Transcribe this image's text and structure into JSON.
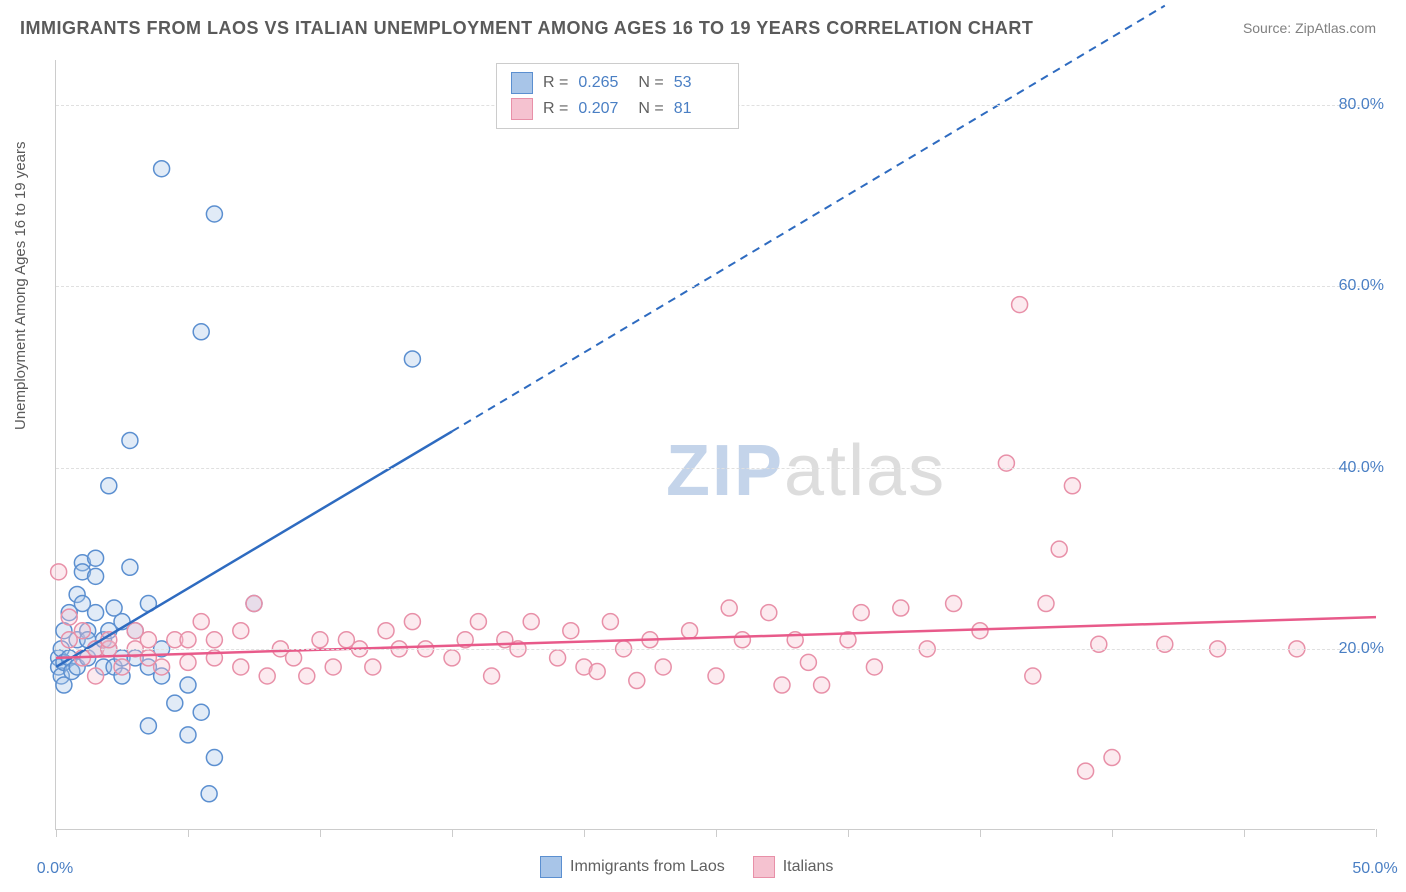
{
  "title": "IMMIGRANTS FROM LAOS VS ITALIAN UNEMPLOYMENT AMONG AGES 16 TO 19 YEARS CORRELATION CHART",
  "source_label": "Source: ",
  "source_name": "ZipAtlas.com",
  "ylabel": "Unemployment Among Ages 16 to 19 years",
  "watermark_a": "ZIP",
  "watermark_b": "atlas",
  "chart": {
    "type": "scatter",
    "background_color": "#ffffff",
    "grid_color": "#e0e0e0",
    "axis_color": "#cccccc",
    "xlim": [
      0,
      50
    ],
    "ylim": [
      0,
      85
    ],
    "xtick_positions": [
      0,
      5,
      10,
      15,
      20,
      25,
      30,
      35,
      40,
      45,
      50
    ],
    "xtick_labels": {
      "0": "0.0%",
      "50": "50.0%"
    },
    "ytick_positions": [
      20,
      40,
      60,
      80
    ],
    "ytick_labels": {
      "20": "20.0%",
      "40": "40.0%",
      "60": "60.0%",
      "80": "80.0%"
    },
    "marker_radius": 8,
    "marker_stroke_width": 1.5,
    "marker_fill_opacity": 0.35,
    "trend_line_width": 2.5,
    "series": [
      {
        "name": "Immigrants from Laos",
        "stroke": "#5b8fd0",
        "fill": "#a8c5e8",
        "line_color": "#2e6bc0",
        "R": "0.265",
        "N": "53",
        "trend": {
          "x1": 0,
          "y1": 18,
          "x2": 15,
          "y2": 44,
          "x1d": 15,
          "y1d": 44,
          "x2d": 42,
          "y2d": 91
        },
        "points": [
          [
            0.1,
            19
          ],
          [
            0.1,
            18
          ],
          [
            0.2,
            17
          ],
          [
            0.2,
            20
          ],
          [
            0.3,
            18.5
          ],
          [
            0.3,
            22
          ],
          [
            0.3,
            16
          ],
          [
            0.5,
            24
          ],
          [
            0.5,
            19
          ],
          [
            0.6,
            17.5
          ],
          [
            0.8,
            26
          ],
          [
            0.8,
            21
          ],
          [
            0.8,
            18
          ],
          [
            1.0,
            25
          ],
          [
            1.0,
            29.5
          ],
          [
            1.0,
            28.5
          ],
          [
            1.2,
            22
          ],
          [
            1.2,
            21
          ],
          [
            1.2,
            19
          ],
          [
            1.5,
            28
          ],
          [
            1.5,
            30
          ],
          [
            1.5,
            20
          ],
          [
            1.5,
            24
          ],
          [
            1.8,
            21
          ],
          [
            1.8,
            18
          ],
          [
            2.0,
            20
          ],
          [
            2.0,
            38
          ],
          [
            2.0,
            22
          ],
          [
            2.2,
            18
          ],
          [
            2.2,
            24.5
          ],
          [
            2.5,
            19
          ],
          [
            2.5,
            23
          ],
          [
            2.5,
            17
          ],
          [
            2.8,
            29
          ],
          [
            2.8,
            43
          ],
          [
            3.0,
            19
          ],
          [
            3.0,
            22
          ],
          [
            3.5,
            18
          ],
          [
            3.5,
            25
          ],
          [
            3.5,
            11.5
          ],
          [
            4.0,
            73
          ],
          [
            4.0,
            17
          ],
          [
            4.0,
            20
          ],
          [
            4.5,
            14
          ],
          [
            5.0,
            10.5
          ],
          [
            5.0,
            16
          ],
          [
            5.5,
            55
          ],
          [
            5.5,
            13
          ],
          [
            5.8,
            4
          ],
          [
            6.0,
            68
          ],
          [
            6.0,
            8
          ],
          [
            7.5,
            25
          ],
          [
            13.5,
            52
          ]
        ]
      },
      {
        "name": "Italians",
        "stroke": "#e890a8",
        "fill": "#f5c2d0",
        "line_color": "#e85a8a",
        "R": "0.207",
        "N": "81",
        "trend": {
          "x1": 0,
          "y1": 19,
          "x2": 50,
          "y2": 23.5,
          "x1d": 0,
          "y1d": 0,
          "x2d": 0,
          "y2d": 0
        },
        "points": [
          [
            0.1,
            28.5
          ],
          [
            0.5,
            21
          ],
          [
            0.5,
            23.5
          ],
          [
            1.0,
            19
          ],
          [
            1.0,
            22
          ],
          [
            1.5,
            17
          ],
          [
            1.5,
            20
          ],
          [
            2.0,
            20
          ],
          [
            2.0,
            21
          ],
          [
            2.5,
            18
          ],
          [
            3.0,
            20
          ],
          [
            3.0,
            22
          ],
          [
            3.5,
            21
          ],
          [
            3.5,
            19
          ],
          [
            4.0,
            18
          ],
          [
            4.5,
            21
          ],
          [
            5.0,
            18.5
          ],
          [
            5.0,
            21
          ],
          [
            5.5,
            23
          ],
          [
            6.0,
            21
          ],
          [
            6.0,
            19
          ],
          [
            7.0,
            18
          ],
          [
            7.0,
            22
          ],
          [
            7.5,
            25
          ],
          [
            8.0,
            17
          ],
          [
            8.5,
            20
          ],
          [
            9.0,
            19
          ],
          [
            9.5,
            17
          ],
          [
            10.0,
            21
          ],
          [
            10.5,
            18
          ],
          [
            11.0,
            21
          ],
          [
            11.5,
            20
          ],
          [
            12.0,
            18
          ],
          [
            12.5,
            22
          ],
          [
            13.0,
            20
          ],
          [
            13.5,
            23
          ],
          [
            14.0,
            20
          ],
          [
            15.0,
            19
          ],
          [
            15.5,
            21
          ],
          [
            16.0,
            23
          ],
          [
            16.5,
            17
          ],
          [
            17.0,
            21
          ],
          [
            17.5,
            20
          ],
          [
            18.0,
            23
          ],
          [
            19.0,
            19
          ],
          [
            19.5,
            22
          ],
          [
            20.0,
            18
          ],
          [
            20.5,
            17.5
          ],
          [
            21.0,
            23
          ],
          [
            21.5,
            20
          ],
          [
            22.0,
            16.5
          ],
          [
            22.5,
            21
          ],
          [
            23.0,
            18
          ],
          [
            24.0,
            22
          ],
          [
            25.0,
            17
          ],
          [
            25.5,
            24.5
          ],
          [
            26.0,
            21
          ],
          [
            27.0,
            24
          ],
          [
            27.5,
            16
          ],
          [
            28.0,
            21
          ],
          [
            28.5,
            18.5
          ],
          [
            29.0,
            16
          ],
          [
            30.0,
            21
          ],
          [
            30.5,
            24
          ],
          [
            31.0,
            18
          ],
          [
            32.0,
            24.5
          ],
          [
            33.0,
            20
          ],
          [
            34.0,
            25
          ],
          [
            35.0,
            22
          ],
          [
            36.0,
            40.5
          ],
          [
            36.5,
            58
          ],
          [
            37.0,
            17
          ],
          [
            37.5,
            25
          ],
          [
            38.0,
            31
          ],
          [
            38.5,
            38
          ],
          [
            39.0,
            6.5
          ],
          [
            39.5,
            20.5
          ],
          [
            40.0,
            8
          ],
          [
            42.0,
            20.5
          ],
          [
            44.0,
            20
          ],
          [
            47.0,
            20
          ]
        ]
      }
    ]
  },
  "legend": {
    "series1_label": "Immigrants from Laos",
    "series2_label": "Italians"
  }
}
